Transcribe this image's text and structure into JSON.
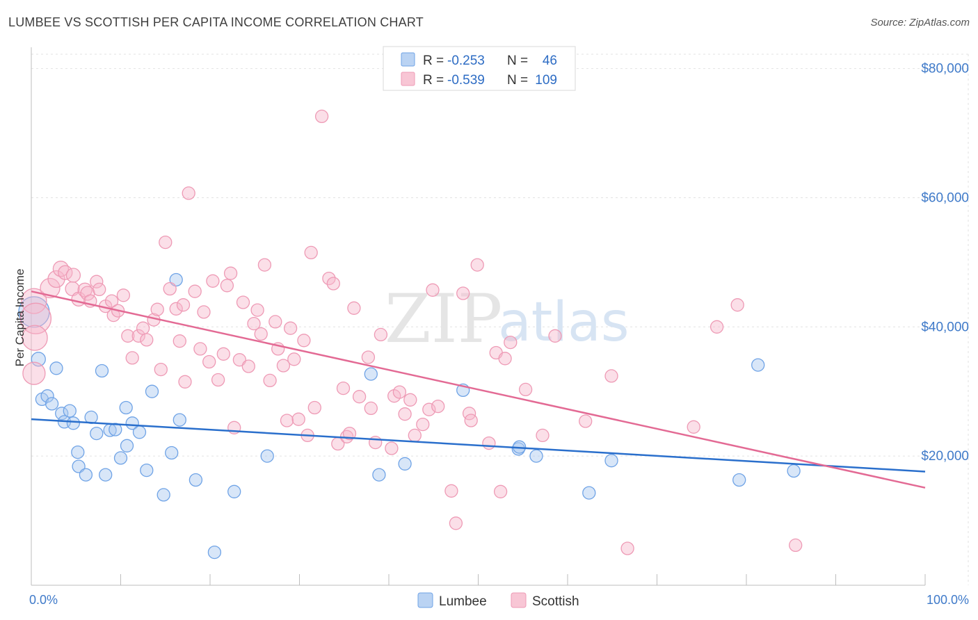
{
  "header": {
    "title": "LUMBEE VS SCOTTISH PER CAPITA INCOME CORRELATION CHART",
    "source": "Source: ZipAtlas.com"
  },
  "watermark": {
    "zip": "ZIP",
    "atlas": "atlas"
  },
  "legend": {
    "rows": [
      {
        "r_label": "R =",
        "r_value": "-0.253",
        "n_label": "N =",
        "n_value": "46",
        "color": "#a9c8f0"
      },
      {
        "r_label": "R =",
        "r_value": "-0.539",
        "n_label": "N =",
        "n_value": "109",
        "color": "#f6b8cb"
      }
    ]
  },
  "bottom_legend": [
    {
      "label": "Lumbee",
      "color": "#a9c8f0"
    },
    {
      "label": "Scottish",
      "color": "#f6b8cb"
    }
  ],
  "chart_data": {
    "type": "scatter",
    "title": "LUMBEE VS SCOTTISH PER CAPITA INCOME CORRELATION CHART",
    "xlabel": "",
    "ylabel": "Per Capita Income",
    "xlim": [
      0,
      100
    ],
    "ylim": [
      0,
      82000
    ],
    "x_tick_labels": [
      "0.0%",
      "100.0%"
    ],
    "y_ticks": [
      20000,
      40000,
      60000,
      80000
    ],
    "y_tick_labels": [
      "$20,000",
      "$40,000",
      "$60,000",
      "$80,000"
    ],
    "grid": true,
    "legend_position": "top-center",
    "series": [
      {
        "name": "Lumbee",
        "color": "#6fa3e6",
        "fill": "#a9c8f0",
        "trend": {
          "x": [
            0,
            100
          ],
          "y": [
            25700,
            17600
          ],
          "color": "#2a6fcc"
        },
        "points": [
          [
            0.3,
            42300,
            22
          ],
          [
            0.8,
            35000,
            10
          ],
          [
            1.2,
            28800,
            9
          ],
          [
            1.8,
            29300,
            9
          ],
          [
            2.3,
            28100,
            9
          ],
          [
            2.8,
            33600,
            9
          ],
          [
            3.4,
            26600,
            9
          ],
          [
            3.7,
            25300,
            9
          ],
          [
            4.3,
            27000,
            9
          ],
          [
            4.7,
            25100,
            9
          ],
          [
            5.2,
            20600,
            9
          ],
          [
            5.3,
            18400,
            9
          ],
          [
            6.1,
            17100,
            9
          ],
          [
            6.7,
            26000,
            9
          ],
          [
            7.3,
            23500,
            9
          ],
          [
            7.9,
            33200,
            9
          ],
          [
            8.3,
            17100,
            9
          ],
          [
            8.8,
            24000,
            9
          ],
          [
            9.4,
            24100,
            9
          ],
          [
            10.0,
            19700,
            9
          ],
          [
            10.7,
            21600,
            9
          ],
          [
            10.6,
            27500,
            9
          ],
          [
            11.3,
            25100,
            9
          ],
          [
            12.1,
            23700,
            9
          ],
          [
            12.9,
            17800,
            9
          ],
          [
            13.5,
            30000,
            9
          ],
          [
            14.8,
            14000,
            9
          ],
          [
            15.7,
            20500,
            9
          ],
          [
            16.2,
            47300,
            9
          ],
          [
            16.6,
            25600,
            9
          ],
          [
            18.4,
            16300,
            9
          ],
          [
            20.5,
            5100,
            9
          ],
          [
            22.7,
            14500,
            9
          ],
          [
            26.4,
            20000,
            9
          ],
          [
            38.0,
            32700,
            9
          ],
          [
            38.9,
            17100,
            9
          ],
          [
            41.8,
            18800,
            9
          ],
          [
            48.3,
            30200,
            9
          ],
          [
            54.5,
            21100,
            9
          ],
          [
            54.6,
            21400,
            9
          ],
          [
            56.5,
            20000,
            9
          ],
          [
            62.4,
            14300,
            9
          ],
          [
            64.9,
            19300,
            9
          ],
          [
            79.2,
            16300,
            9
          ],
          [
            81.3,
            34100,
            9
          ],
          [
            85.3,
            17700,
            9
          ]
        ]
      },
      {
        "name": "Scottish",
        "color": "#ee9ab5",
        "fill": "#f6b8cb",
        "trend": {
          "x": [
            0,
            100
          ],
          "y": [
            45500,
            15100
          ],
          "color": "#e36a94"
        },
        "points": [
          [
            0.3,
            44000,
            18
          ],
          [
            0.5,
            41300,
            22
          ],
          [
            0.4,
            38300,
            18
          ],
          [
            0.3,
            32800,
            16
          ],
          [
            2.1,
            46000,
            14
          ],
          [
            2.8,
            47400,
            12
          ],
          [
            3.3,
            49000,
            11
          ],
          [
            3.8,
            48400,
            10
          ],
          [
            4.6,
            45900,
            10
          ],
          [
            4.7,
            48000,
            10
          ],
          [
            5.3,
            44300,
            10
          ],
          [
            6.0,
            45700,
            10
          ],
          [
            6.3,
            45200,
            10
          ],
          [
            6.6,
            44000,
            9
          ],
          [
            7.3,
            47000,
            9
          ],
          [
            7.6,
            45800,
            9
          ],
          [
            8.3,
            43200,
            9
          ],
          [
            9.0,
            44000,
            9
          ],
          [
            9.2,
            41800,
            9
          ],
          [
            9.7,
            42500,
            9
          ],
          [
            10.3,
            44900,
            9
          ],
          [
            10.8,
            38600,
            9
          ],
          [
            11.3,
            35200,
            9
          ],
          [
            12.0,
            38600,
            9
          ],
          [
            12.5,
            39800,
            9
          ],
          [
            12.9,
            38000,
            9
          ],
          [
            13.7,
            41100,
            9
          ],
          [
            14.1,
            42700,
            9
          ],
          [
            14.5,
            33400,
            9
          ],
          [
            15.0,
            53100,
            9
          ],
          [
            15.5,
            45900,
            9
          ],
          [
            16.2,
            42800,
            9
          ],
          [
            16.6,
            37800,
            9
          ],
          [
            17.0,
            43400,
            9
          ],
          [
            17.2,
            31500,
            9
          ],
          [
            17.6,
            60700,
            9
          ],
          [
            18.3,
            45500,
            9
          ],
          [
            18.9,
            36600,
            9
          ],
          [
            19.3,
            42300,
            9
          ],
          [
            19.9,
            34600,
            9
          ],
          [
            20.3,
            47100,
            9
          ],
          [
            20.9,
            31800,
            9
          ],
          [
            21.5,
            35800,
            9
          ],
          [
            21.9,
            46400,
            9
          ],
          [
            22.3,
            48300,
            9
          ],
          [
            22.7,
            24400,
            9
          ],
          [
            23.3,
            34900,
            9
          ],
          [
            23.7,
            43800,
            9
          ],
          [
            24.3,
            33900,
            9
          ],
          [
            24.9,
            40500,
            9
          ],
          [
            25.3,
            42600,
            9
          ],
          [
            25.7,
            38900,
            9
          ],
          [
            26.1,
            49600,
            9
          ],
          [
            26.7,
            31700,
            9
          ],
          [
            27.3,
            40800,
            9
          ],
          [
            27.6,
            36600,
            9
          ],
          [
            28.2,
            34000,
            9
          ],
          [
            28.6,
            25500,
            9
          ],
          [
            29.0,
            39800,
            9
          ],
          [
            29.4,
            35000,
            9
          ],
          [
            29.9,
            25700,
            9
          ],
          [
            30.5,
            37900,
            9
          ],
          [
            30.9,
            23200,
            9
          ],
          [
            31.3,
            51500,
            9
          ],
          [
            31.7,
            27500,
            9
          ],
          [
            32.5,
            72600,
            9
          ],
          [
            33.3,
            47500,
            9
          ],
          [
            33.8,
            46700,
            9
          ],
          [
            34.3,
            21900,
            9
          ],
          [
            34.9,
            30500,
            9
          ],
          [
            35.3,
            23000,
            9
          ],
          [
            35.6,
            23500,
            9
          ],
          [
            36.1,
            42900,
            9
          ],
          [
            36.7,
            29200,
            9
          ],
          [
            37.7,
            35300,
            9
          ],
          [
            38.0,
            27400,
            9
          ],
          [
            38.5,
            22100,
            9
          ],
          [
            39.1,
            38800,
            9
          ],
          [
            40.3,
            21200,
            9
          ],
          [
            40.6,
            29300,
            9
          ],
          [
            41.2,
            29900,
            9
          ],
          [
            41.8,
            26500,
            9
          ],
          [
            42.4,
            28700,
            9
          ],
          [
            42.9,
            23200,
            9
          ],
          [
            43.8,
            24900,
            9
          ],
          [
            44.5,
            27200,
            9
          ],
          [
            44.9,
            45700,
            9
          ],
          [
            45.5,
            27700,
            9
          ],
          [
            47.0,
            14600,
            9
          ],
          [
            47.5,
            9600,
            9
          ],
          [
            48.3,
            45200,
            9
          ],
          [
            49.0,
            26600,
            9
          ],
          [
            49.2,
            25500,
            9
          ],
          [
            49.9,
            49600,
            9
          ],
          [
            51.2,
            22000,
            9
          ],
          [
            52.0,
            36000,
            9
          ],
          [
            52.5,
            14500,
            9
          ],
          [
            53.0,
            35100,
            9
          ],
          [
            53.6,
            37600,
            9
          ],
          [
            55.3,
            30300,
            9
          ],
          [
            57.2,
            23200,
            9
          ],
          [
            58.6,
            38600,
            9
          ],
          [
            62.0,
            25400,
            9
          ],
          [
            64.9,
            32400,
            9
          ],
          [
            66.7,
            5700,
            9
          ],
          [
            74.1,
            24500,
            9
          ],
          [
            76.7,
            40000,
            9
          ],
          [
            79.0,
            43400,
            9
          ],
          [
            85.5,
            6200,
            9
          ]
        ]
      }
    ]
  }
}
